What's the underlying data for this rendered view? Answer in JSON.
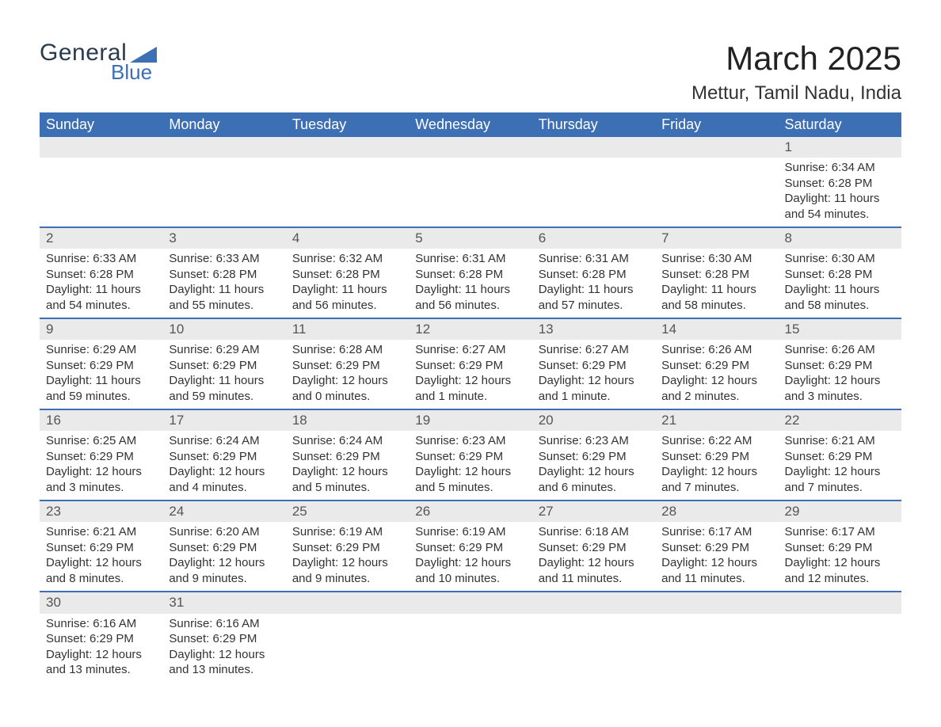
{
  "brand": {
    "name_top": "General",
    "name_bottom": "Blue"
  },
  "title": "March 2025",
  "location": "Mettur, Tamil Nadu, India",
  "colors": {
    "header_bg": "#3d6fb4",
    "header_fg": "#ffffff",
    "daynum_bg": "#eaeaea",
    "divider": "#3d6fb4",
    "text": "#333333",
    "background": "#ffffff"
  },
  "typography": {
    "title_fontsize": 42,
    "location_fontsize": 24,
    "header_fontsize": 18,
    "cell_fontsize": 15
  },
  "layout": {
    "columns": 7,
    "rows": 6
  },
  "weekdays": [
    "Sunday",
    "Monday",
    "Tuesday",
    "Wednesday",
    "Thursday",
    "Friday",
    "Saturday"
  ],
  "weeks": [
    [
      null,
      null,
      null,
      null,
      null,
      null,
      {
        "day": "1",
        "sunrise": "Sunrise: 6:34 AM",
        "sunset": "Sunset: 6:28 PM",
        "daylight": "Daylight: 11 hours and 54 minutes."
      }
    ],
    [
      {
        "day": "2",
        "sunrise": "Sunrise: 6:33 AM",
        "sunset": "Sunset: 6:28 PM",
        "daylight": "Daylight: 11 hours and 54 minutes."
      },
      {
        "day": "3",
        "sunrise": "Sunrise: 6:33 AM",
        "sunset": "Sunset: 6:28 PM",
        "daylight": "Daylight: 11 hours and 55 minutes."
      },
      {
        "day": "4",
        "sunrise": "Sunrise: 6:32 AM",
        "sunset": "Sunset: 6:28 PM",
        "daylight": "Daylight: 11 hours and 56 minutes."
      },
      {
        "day": "5",
        "sunrise": "Sunrise: 6:31 AM",
        "sunset": "Sunset: 6:28 PM",
        "daylight": "Daylight: 11 hours and 56 minutes."
      },
      {
        "day": "6",
        "sunrise": "Sunrise: 6:31 AM",
        "sunset": "Sunset: 6:28 PM",
        "daylight": "Daylight: 11 hours and 57 minutes."
      },
      {
        "day": "7",
        "sunrise": "Sunrise: 6:30 AM",
        "sunset": "Sunset: 6:28 PM",
        "daylight": "Daylight: 11 hours and 58 minutes."
      },
      {
        "day": "8",
        "sunrise": "Sunrise: 6:30 AM",
        "sunset": "Sunset: 6:28 PM",
        "daylight": "Daylight: 11 hours and 58 minutes."
      }
    ],
    [
      {
        "day": "9",
        "sunrise": "Sunrise: 6:29 AM",
        "sunset": "Sunset: 6:29 PM",
        "daylight": "Daylight: 11 hours and 59 minutes."
      },
      {
        "day": "10",
        "sunrise": "Sunrise: 6:29 AM",
        "sunset": "Sunset: 6:29 PM",
        "daylight": "Daylight: 11 hours and 59 minutes."
      },
      {
        "day": "11",
        "sunrise": "Sunrise: 6:28 AM",
        "sunset": "Sunset: 6:29 PM",
        "daylight": "Daylight: 12 hours and 0 minutes."
      },
      {
        "day": "12",
        "sunrise": "Sunrise: 6:27 AM",
        "sunset": "Sunset: 6:29 PM",
        "daylight": "Daylight: 12 hours and 1 minute."
      },
      {
        "day": "13",
        "sunrise": "Sunrise: 6:27 AM",
        "sunset": "Sunset: 6:29 PM",
        "daylight": "Daylight: 12 hours and 1 minute."
      },
      {
        "day": "14",
        "sunrise": "Sunrise: 6:26 AM",
        "sunset": "Sunset: 6:29 PM",
        "daylight": "Daylight: 12 hours and 2 minutes."
      },
      {
        "day": "15",
        "sunrise": "Sunrise: 6:26 AM",
        "sunset": "Sunset: 6:29 PM",
        "daylight": "Daylight: 12 hours and 3 minutes."
      }
    ],
    [
      {
        "day": "16",
        "sunrise": "Sunrise: 6:25 AM",
        "sunset": "Sunset: 6:29 PM",
        "daylight": "Daylight: 12 hours and 3 minutes."
      },
      {
        "day": "17",
        "sunrise": "Sunrise: 6:24 AM",
        "sunset": "Sunset: 6:29 PM",
        "daylight": "Daylight: 12 hours and 4 minutes."
      },
      {
        "day": "18",
        "sunrise": "Sunrise: 6:24 AM",
        "sunset": "Sunset: 6:29 PM",
        "daylight": "Daylight: 12 hours and 5 minutes."
      },
      {
        "day": "19",
        "sunrise": "Sunrise: 6:23 AM",
        "sunset": "Sunset: 6:29 PM",
        "daylight": "Daylight: 12 hours and 5 minutes."
      },
      {
        "day": "20",
        "sunrise": "Sunrise: 6:23 AM",
        "sunset": "Sunset: 6:29 PM",
        "daylight": "Daylight: 12 hours and 6 minutes."
      },
      {
        "day": "21",
        "sunrise": "Sunrise: 6:22 AM",
        "sunset": "Sunset: 6:29 PM",
        "daylight": "Daylight: 12 hours and 7 minutes."
      },
      {
        "day": "22",
        "sunrise": "Sunrise: 6:21 AM",
        "sunset": "Sunset: 6:29 PM",
        "daylight": "Daylight: 12 hours and 7 minutes."
      }
    ],
    [
      {
        "day": "23",
        "sunrise": "Sunrise: 6:21 AM",
        "sunset": "Sunset: 6:29 PM",
        "daylight": "Daylight: 12 hours and 8 minutes."
      },
      {
        "day": "24",
        "sunrise": "Sunrise: 6:20 AM",
        "sunset": "Sunset: 6:29 PM",
        "daylight": "Daylight: 12 hours and 9 minutes."
      },
      {
        "day": "25",
        "sunrise": "Sunrise: 6:19 AM",
        "sunset": "Sunset: 6:29 PM",
        "daylight": "Daylight: 12 hours and 9 minutes."
      },
      {
        "day": "26",
        "sunrise": "Sunrise: 6:19 AM",
        "sunset": "Sunset: 6:29 PM",
        "daylight": "Daylight: 12 hours and 10 minutes."
      },
      {
        "day": "27",
        "sunrise": "Sunrise: 6:18 AM",
        "sunset": "Sunset: 6:29 PM",
        "daylight": "Daylight: 12 hours and 11 minutes."
      },
      {
        "day": "28",
        "sunrise": "Sunrise: 6:17 AM",
        "sunset": "Sunset: 6:29 PM",
        "daylight": "Daylight: 12 hours and 11 minutes."
      },
      {
        "day": "29",
        "sunrise": "Sunrise: 6:17 AM",
        "sunset": "Sunset: 6:29 PM",
        "daylight": "Daylight: 12 hours and 12 minutes."
      }
    ],
    [
      {
        "day": "30",
        "sunrise": "Sunrise: 6:16 AM",
        "sunset": "Sunset: 6:29 PM",
        "daylight": "Daylight: 12 hours and 13 minutes."
      },
      {
        "day": "31",
        "sunrise": "Sunrise: 6:16 AM",
        "sunset": "Sunset: 6:29 PM",
        "daylight": "Daylight: 12 hours and 13 minutes."
      },
      null,
      null,
      null,
      null,
      null
    ]
  ]
}
